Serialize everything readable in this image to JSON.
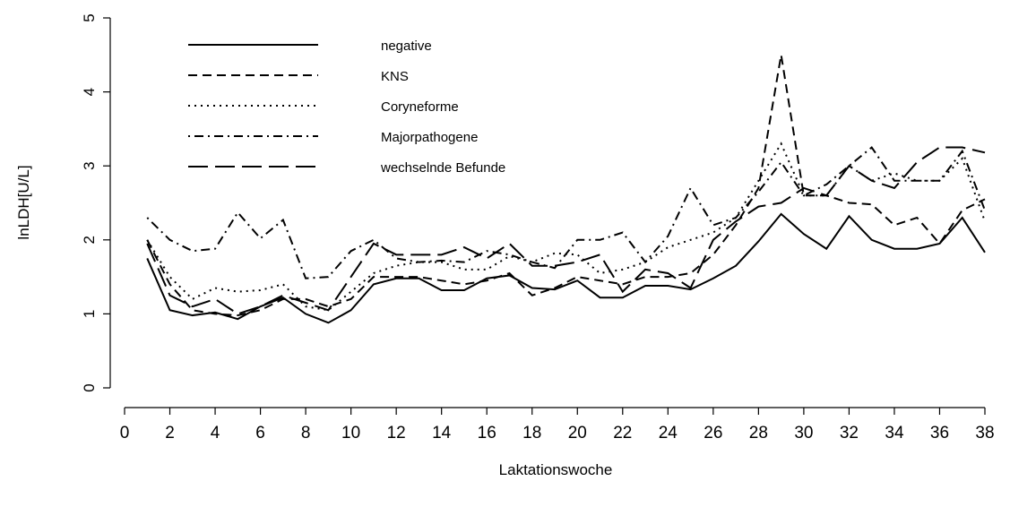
{
  "chart_data": {
    "type": "line",
    "x_label": "Laktationswoche",
    "y_label": "lnLDH[U/L]",
    "x": [
      1,
      2,
      3,
      4,
      5,
      6,
      7,
      8,
      9,
      10,
      11,
      12,
      13,
      14,
      15,
      16,
      17,
      18,
      19,
      20,
      21,
      22,
      23,
      24,
      25,
      26,
      27,
      28,
      29,
      30,
      31,
      32,
      33,
      34,
      35,
      36,
      37,
      38
    ],
    "xlim": [
      0,
      38
    ],
    "xticks": [
      0,
      2,
      4,
      6,
      8,
      10,
      12,
      14,
      16,
      18,
      20,
      22,
      24,
      26,
      28,
      30,
      32,
      34,
      36,
      38
    ],
    "ylim": [
      0,
      5
    ],
    "yticks": [
      0,
      1,
      2,
      3,
      4,
      5
    ],
    "legend": "top-left",
    "series": [
      {
        "name": "negative",
        "color": "#000000",
        "linestyle": "solid",
        "values": [
          1.75,
          1.05,
          0.98,
          1.02,
          0.93,
          1.1,
          1.22,
          1.0,
          0.88,
          1.05,
          1.4,
          1.48,
          1.48,
          1.32,
          1.32,
          1.48,
          1.52,
          1.35,
          1.33,
          1.45,
          1.22,
          1.22,
          1.38,
          1.38,
          1.33,
          1.48,
          1.65,
          1.98,
          2.35,
          2.08,
          1.88,
          2.32,
          2.0,
          1.88,
          1.88,
          1.95,
          2.3,
          1.83
        ]
      },
      {
        "name": "KNS",
        "color": "#000000",
        "linestyle": "dashed",
        "values": [
          2.0,
          1.4,
          1.05,
          1.0,
          0.98,
          1.05,
          1.2,
          1.2,
          1.1,
          1.2,
          1.5,
          1.5,
          1.5,
          1.45,
          1.4,
          1.45,
          1.55,
          1.25,
          1.35,
          1.5,
          1.45,
          1.4,
          1.5,
          1.5,
          1.55,
          1.8,
          2.2,
          2.7,
          4.5,
          2.6,
          2.6,
          2.5,
          2.48,
          2.2,
          2.3,
          1.95,
          2.4,
          2.55
        ]
      },
      {
        "name": "Coryneforme",
        "color": "#000000",
        "linestyle": "dotted",
        "values": [
          2.0,
          1.5,
          1.2,
          1.35,
          1.3,
          1.32,
          1.4,
          1.1,
          1.05,
          1.3,
          1.55,
          1.65,
          1.7,
          1.7,
          1.6,
          1.6,
          1.78,
          1.7,
          1.82,
          1.8,
          1.55,
          1.6,
          1.7,
          1.9,
          2.0,
          2.1,
          2.3,
          2.8,
          3.3,
          2.6,
          2.6,
          3.0,
          2.8,
          2.9,
          2.8,
          2.8,
          3.1,
          2.25
        ]
      },
      {
        "name": "Majorpathogene",
        "color": "#000000",
        "linestyle": "dashdot",
        "values": [
          2.3,
          2.0,
          1.85,
          1.88,
          2.37,
          2.02,
          2.27,
          1.48,
          1.5,
          1.85,
          2.0,
          1.75,
          1.7,
          1.72,
          1.7,
          1.85,
          1.8,
          1.7,
          1.62,
          2.0,
          2.0,
          2.1,
          1.7,
          2.05,
          2.7,
          2.2,
          2.3,
          2.65,
          3.05,
          2.6,
          2.75,
          3.0,
          3.25,
          2.8,
          2.8,
          2.8,
          3.2,
          2.4
        ]
      },
      {
        "name": "wechselnde Befunde",
        "color": "#000000",
        "linestyle": "longdash",
        "values": [
          1.95,
          1.25,
          1.1,
          1.2,
          1.0,
          1.1,
          1.25,
          1.15,
          1.05,
          1.5,
          1.95,
          1.8,
          1.8,
          1.8,
          1.9,
          1.75,
          1.95,
          1.65,
          1.65,
          1.7,
          1.8,
          1.3,
          1.6,
          1.55,
          1.35,
          2.0,
          2.25,
          2.45,
          2.5,
          2.7,
          2.6,
          3.0,
          2.8,
          2.7,
          3.05,
          3.25,
          3.25,
          3.18
        ]
      }
    ]
  }
}
